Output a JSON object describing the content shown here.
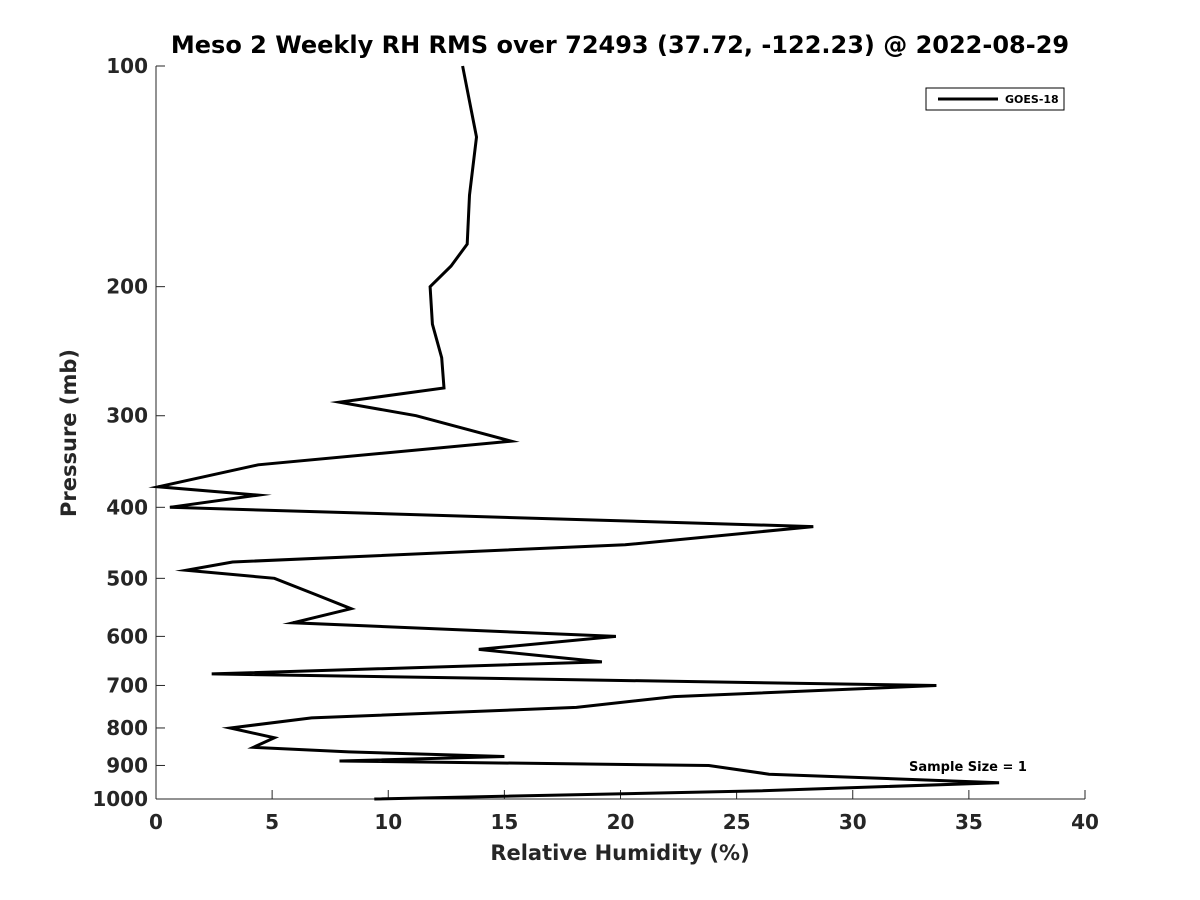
{
  "chart_data": {
    "type": "line",
    "title": "Meso 2 Weekly RH RMS over 72493 (37.72, -122.23) @ 2022-08-29",
    "xlabel": "Relative Humidity (%)",
    "ylabel": "Pressure (mb)",
    "xlim": [
      0,
      40
    ],
    "ylim": [
      100,
      1000
    ],
    "y_scale": "log",
    "y_reversed": true,
    "grid": false,
    "legend_position": "top-right",
    "x_ticks": [
      0,
      5,
      10,
      15,
      20,
      25,
      30,
      35,
      40
    ],
    "y_ticks": [
      100,
      200,
      300,
      400,
      500,
      600,
      700,
      800,
      900,
      1000
    ],
    "annotation": "Sample Size = 1",
    "series": [
      {
        "name": "GOES-18",
        "color": "#000000",
        "points": [
          [
            13.2,
            100
          ],
          [
            13.8,
            125
          ],
          [
            13.5,
            150
          ],
          [
            13.4,
            175
          ],
          [
            12.7,
            187.5
          ],
          [
            11.8,
            200
          ],
          [
            11.9,
            225
          ],
          [
            12.3,
            250
          ],
          [
            12.4,
            275
          ],
          [
            7.9,
            287.5
          ],
          [
            11.2,
            300
          ],
          [
            15.3,
            325
          ],
          [
            4.4,
            350
          ],
          [
            0.1,
            375
          ],
          [
            4.4,
            385
          ],
          [
            0.6,
            400
          ],
          [
            28.3,
            425
          ],
          [
            20.2,
            450
          ],
          [
            3.3,
            475
          ],
          [
            1.3,
            487.5
          ],
          [
            5.1,
            500
          ],
          [
            6.8,
            525
          ],
          [
            8.4,
            550
          ],
          [
            5.9,
            575
          ],
          [
            19.8,
            600
          ],
          [
            13.9,
            625
          ],
          [
            19.2,
            650
          ],
          [
            2.4,
            675
          ],
          [
            33.6,
            700
          ],
          [
            22.3,
            725
          ],
          [
            18.1,
            750
          ],
          [
            6.7,
            775
          ],
          [
            3.2,
            800
          ],
          [
            5.1,
            825
          ],
          [
            4.2,
            850
          ],
          [
            8.3,
            862.5
          ],
          [
            15.0,
            875
          ],
          [
            7.9,
            887.5
          ],
          [
            23.8,
            900
          ],
          [
            26.4,
            925
          ],
          [
            36.3,
            950
          ],
          [
            25.9,
            975
          ],
          [
            9.4,
            1000
          ]
        ]
      }
    ]
  }
}
